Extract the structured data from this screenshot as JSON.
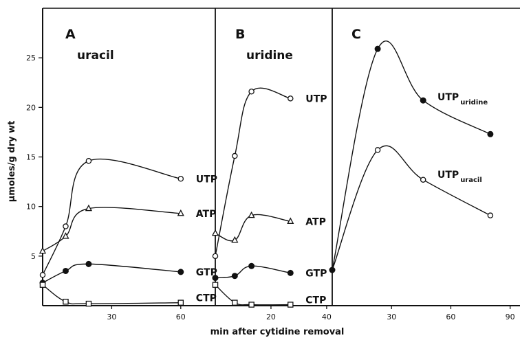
{
  "chart_data": {
    "type": "line",
    "ylabel": "μmoles/g dry wt",
    "xlabel": "min after cytidine removal",
    "ylim": [
      0,
      30
    ],
    "y_ticks": [
      5,
      10,
      15,
      20,
      25
    ],
    "panels": [
      {
        "letter": "A",
        "subtitle": "uracil",
        "xlim": [
          0,
          75
        ],
        "x_ticks": [
          30,
          60
        ],
        "series": [
          {
            "name": "UTP",
            "marker": "open-circle",
            "x": [
              0,
              10,
              20,
              60
            ],
            "y": [
              3.1,
              8.0,
              14.6,
              12.8
            ]
          },
          {
            "name": "ATP",
            "marker": "open-triangle",
            "x": [
              0,
              10,
              20,
              60
            ],
            "y": [
              5.5,
              7.0,
              9.8,
              9.3
            ]
          },
          {
            "name": "GTP",
            "marker": "filled-circle",
            "x": [
              0,
              10,
              20,
              60
            ],
            "y": [
              2.3,
              3.5,
              4.2,
              3.4
            ]
          },
          {
            "name": "CTP",
            "marker": "open-square",
            "x": [
              0,
              10,
              20,
              60
            ],
            "y": [
              2.1,
              0.4,
              0.2,
              0.3
            ]
          }
        ]
      },
      {
        "letter": "B",
        "subtitle": "uridine",
        "xlim": [
          0,
          42
        ],
        "x_ticks": [
          20,
          40
        ],
        "series": [
          {
            "name": "UTP",
            "marker": "open-circle",
            "x": [
              0,
              7,
              13,
              27
            ],
            "y": [
              5.0,
              15.1,
              21.6,
              20.9
            ]
          },
          {
            "name": "ATP",
            "marker": "open-triangle",
            "x": [
              0,
              7,
              13,
              27
            ],
            "y": [
              7.3,
              6.6,
              9.1,
              8.5
            ]
          },
          {
            "name": "GTP",
            "marker": "filled-circle",
            "x": [
              0,
              7,
              13,
              27
            ],
            "y": [
              2.8,
              3.0,
              4.0,
              3.3
            ]
          },
          {
            "name": "CTP",
            "marker": "open-square",
            "x": [
              0,
              7,
              13,
              27
            ],
            "y": [
              2.1,
              0.3,
              0.1,
              0.1
            ]
          }
        ]
      },
      {
        "letter": "C",
        "subtitle": "",
        "xlim": [
          0,
          95
        ],
        "x_ticks": [
          30,
          60,
          90
        ],
        "series": [
          {
            "name": "UTP",
            "name_sub": "uridine",
            "marker": "filled-circle",
            "x": [
              0,
              23,
              46,
              80
            ],
            "y": [
              3.6,
              25.9,
              20.7,
              17.3
            ]
          },
          {
            "name": "UTP",
            "name_sub": "uracil",
            "marker": "open-circle",
            "x": [
              0,
              23,
              46,
              80
            ],
            "y": [
              3.6,
              15.7,
              12.7,
              9.1
            ]
          }
        ]
      }
    ]
  }
}
